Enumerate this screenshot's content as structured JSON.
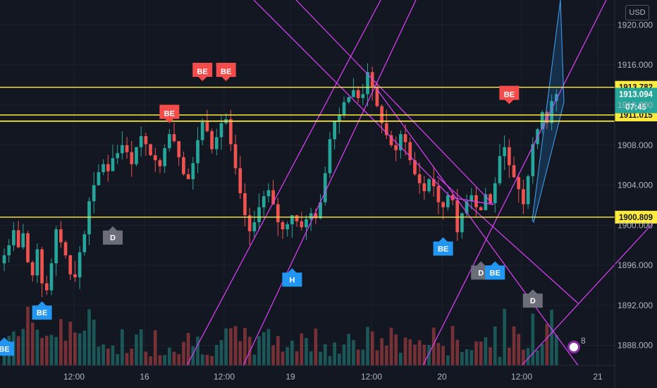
{
  "currency_label": "USD",
  "alert_count": "8",
  "colors": {
    "background": "#131722",
    "grid": "#1e222d",
    "up": "#26a69a",
    "down": "#ef5350",
    "channel": "#e040fb",
    "hline": "#ffeb3b",
    "be_buy": "#2196f3",
    "be_sell": "#f44b4b",
    "d_marker": "#6b6e78",
    "price_tag": "#26a69a"
  },
  "chart_data": {
    "type": "candlestick",
    "ylim": [
      1886,
      1922.5
    ],
    "x_ticks": [
      "12:00",
      "16",
      "12:00",
      "19",
      "12:00",
      "20",
      "12:00",
      "21"
    ],
    "y_ticks": [
      "1888.000",
      "1892.000",
      "1896.000",
      "1900.000",
      "1904.000",
      "1908.000",
      "1912.000",
      "1916.000",
      "1920.000"
    ],
    "horizontal_levels": [
      {
        "value": 1913.782,
        "label": "1913.782"
      },
      {
        "value": 1911.015,
        "label": "1911.015"
      },
      {
        "value": 1900.809,
        "label": "1900.809"
      }
    ],
    "last_price": {
      "value": 1913.094,
      "label": "1913.094",
      "countdown": "07:45"
    },
    "markers": [
      {
        "text": "BE",
        "type": "buy",
        "bar": 0,
        "price": 1888.8
      },
      {
        "text": "BE",
        "type": "buy",
        "bar": 8,
        "price": 1892.4
      },
      {
        "text": "D",
        "type": "neutral",
        "bar": 23,
        "price": 1899.9
      },
      {
        "text": "BE",
        "type": "sell",
        "bar": 35,
        "price": 1910.2
      },
      {
        "text": "BE",
        "type": "sell",
        "bar": 42,
        "price": 1914.4
      },
      {
        "text": "BE",
        "type": "sell",
        "bar": 47,
        "price": 1914.4
      },
      {
        "text": "H",
        "type": "buy",
        "bar": 61,
        "price": 1895.7
      },
      {
        "text": "BE",
        "type": "buy",
        "bar": 93,
        "price": 1898.8
      },
      {
        "text": "D",
        "type": "neutral",
        "bar": 101,
        "price": 1896.4
      },
      {
        "text": "BE",
        "type": "buy",
        "bar": 104,
        "price": 1896.4
      },
      {
        "text": "BE",
        "type": "sell",
        "bar": 107,
        "price": 1912.1
      },
      {
        "text": "D",
        "type": "neutral",
        "bar": 112,
        "price": 1893.6
      }
    ],
    "ohlc_seed": [
      1897,
      1898,
      1899.5,
      1897.8,
      1899.2,
      1896.3,
      1895.0,
      1897.6,
      1894.2,
      1893.5,
      1896.2,
      1899.6,
      1898.3,
      1897.0,
      1895.1,
      1894.8,
      1897.3,
      1899.1,
      1902.4,
      1904.0,
      1905.3,
      1906.1,
      1905.4,
      1906.7,
      1907.2,
      1908.0,
      1907.3,
      1906.1,
      1907.8,
      1908.9,
      1908.1,
      1907.0,
      1906.5,
      1905.9,
      1907.7,
      1909.1,
      1908.4,
      1906.8,
      1905.1,
      1904.6,
      1906.2,
      1908.5,
      1910.3,
      1909.4,
      1907.6,
      1908.8,
      1910.2,
      1910.6,
      1908.1,
      1905.7,
      1903.2,
      1901.0,
      1899.4,
      1900.3,
      1901.8,
      1902.9,
      1903.5,
      1902.1,
      1900.3,
      1899.6,
      1900.1,
      1901.0,
      1900.4,
      1899.8,
      1900.6,
      1901.2,
      1900.7,
      1902.3,
      1905.2,
      1908.6,
      1910.4,
      1911.0,
      1912.3,
      1912.8,
      1913.5,
      1912.7,
      1913.1,
      1915.3,
      1913.8,
      1911.9,
      1910.2,
      1909.0,
      1908.0,
      1907.5,
      1909.1,
      1908.3,
      1906.5,
      1905.1,
      1904.2,
      1903.4,
      1904.6,
      1903.9,
      1902.3,
      1901.8,
      1903.0,
      1902.5,
      1899.3,
      1901.2,
      1902.4,
      1903.0,
      1901.8,
      1901.5,
      1903.1,
      1902.2,
      1904.2,
      1906.9,
      1907.8,
      1906.0,
      1904.8,
      1903.6,
      1902.1,
      1904.9,
      1908.1,
      1909.6,
      1911.3,
      1910.2,
      1912.4,
      1913.1
    ]
  }
}
